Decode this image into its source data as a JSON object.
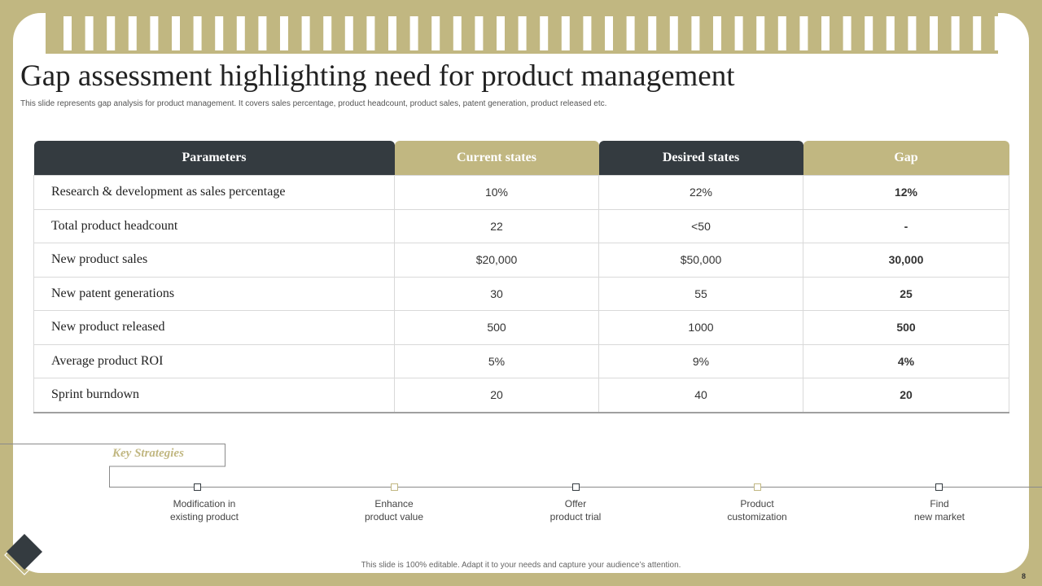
{
  "slide": {
    "title": "Gap assessment highlighting need for product management",
    "subtitle": "This slide represents gap analysis for product management. It covers sales percentage, product headcount, product sales, patent generation, product released etc.",
    "footer": "This slide is 100% editable. Adapt it to your needs and capture your audience’s attention.",
    "page_number": "8"
  },
  "table": {
    "headers": [
      "Parameters",
      "Current  states",
      "Desired states",
      "Gap"
    ],
    "rows": [
      {
        "parameter": "Research & development as sales percentage",
        "current": "10%",
        "desired": "22%",
        "gap": "12%"
      },
      {
        "parameter": "Total product headcount",
        "current": "22",
        "desired": "<50",
        "gap": "-"
      },
      {
        "parameter": "New product sales",
        "current": "$20,000",
        "desired": "$50,000",
        "gap": "30,000"
      },
      {
        "parameter": "New patent generations",
        "current": "30",
        "desired": "55",
        "gap": "25"
      },
      {
        "parameter": "New product released",
        "current": "500",
        "desired": "1000",
        "gap": "500"
      },
      {
        "parameter": "Average product ROI",
        "current": "5%",
        "desired": "9%",
        "gap": "4%"
      },
      {
        "parameter": "Sprint burndown",
        "current": "20",
        "desired": "40",
        "gap": "20"
      }
    ]
  },
  "strategies": {
    "label": "Key Strategies",
    "items": [
      {
        "line1": "Modification in",
        "line2": "existing product"
      },
      {
        "line1": "Enhance",
        "line2": "product value"
      },
      {
        "line1": "Offer",
        "line2": "product trial"
      },
      {
        "line1": "Product",
        "line2": "customization"
      },
      {
        "line1": "Find",
        "line2": "new market"
      }
    ]
  },
  "colors": {
    "accent_gold": "#c1b781",
    "dark": "#343b40",
    "background": "#ffffff"
  }
}
